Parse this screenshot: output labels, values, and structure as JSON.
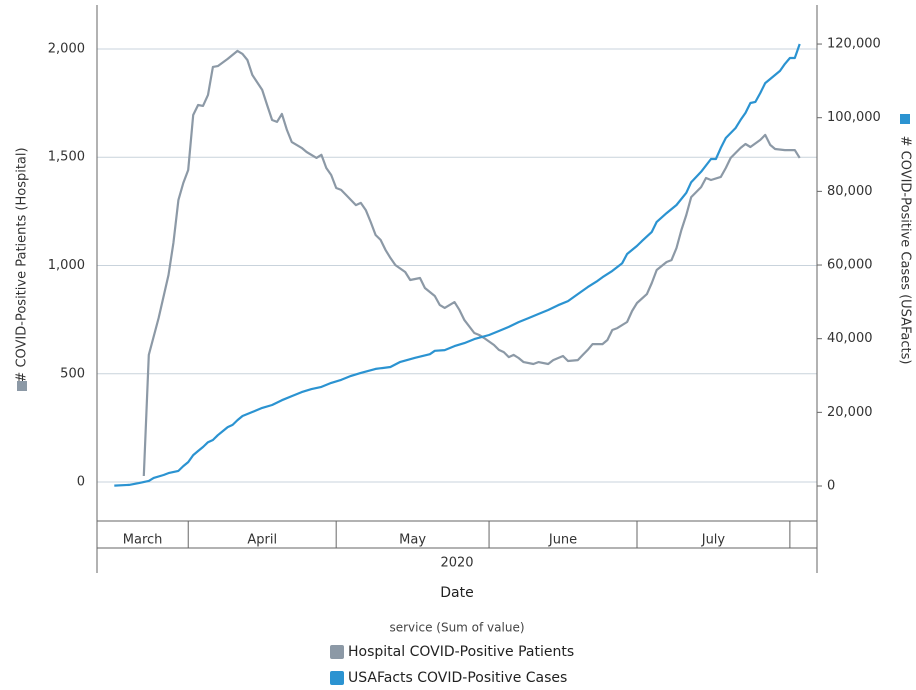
{
  "chart_data": {
    "type": "line",
    "x_label": "Date",
    "x_group_label": "2020",
    "ylabel": "# COVID-Positive Patients (Hospital)",
    "y2label": "# COVID-Positive Cases (USAFacts)",
    "legend_title": "service (Sum of value)",
    "xlim": [
      73.5,
      219.5
    ],
    "x_bands": [
      {
        "label": "March",
        "start": 61,
        "end": 92
      },
      {
        "label": "April",
        "start": 92,
        "end": 122
      },
      {
        "label": "May",
        "start": 122,
        "end": 153
      },
      {
        "label": "June",
        "start": 153,
        "end": 183
      },
      {
        "label": "July",
        "start": 183,
        "end": 214
      },
      {
        "label": null,
        "start": 214,
        "end": 245
      }
    ],
    "ylim": [
      -180,
      2203
    ],
    "yticks": [
      0,
      500,
      {
        "value": 1000,
        "label": "1,000"
      },
      {
        "value": 1500,
        "label": "1,500"
      },
      {
        "value": 2000,
        "label": "2,000"
      }
    ],
    "y2lim": [
      -9500,
      130600
    ],
    "y2ticks": [
      0,
      {
        "value": 20000,
        "label": "20,000"
      },
      {
        "value": 40000,
        "label": "40,000"
      },
      {
        "value": 60000,
        "label": "60,000"
      },
      {
        "value": 80000,
        "label": "80,000"
      },
      {
        "value": 100000,
        "label": "100,000"
      },
      {
        "value": 120000,
        "label": "120,000"
      }
    ],
    "grid": true,
    "series": [
      {
        "name": "Hospital COVID-Positive Patients",
        "color": "#8c99a6",
        "axis": "y",
        "x": [
          83,
          84,
          86,
          88,
          89,
          90,
          91,
          92,
          93,
          94,
          95,
          96,
          97,
          98,
          100,
          102,
          103,
          104,
          105,
          107,
          108,
          109,
          110,
          111,
          112,
          113,
          115,
          116,
          118,
          119,
          120,
          121,
          122,
          123,
          124,
          126,
          127,
          128,
          129,
          130,
          131,
          132,
          133,
          134,
          136,
          137,
          139,
          140,
          142,
          143,
          144,
          146,
          147,
          148,
          150,
          151,
          152,
          154,
          155,
          156,
          157,
          158,
          159,
          160,
          162,
          163,
          165,
          166,
          168,
          169,
          171,
          172,
          173,
          174,
          176,
          177,
          178,
          179,
          181,
          182,
          183,
          185,
          186,
          187,
          189,
          190,
          191,
          192,
          193,
          194,
          196,
          197,
          198,
          200,
          201,
          202,
          204,
          205,
          206,
          208,
          209,
          210,
          211,
          213,
          214,
          215,
          216
        ],
        "values": [
          28,
          587,
          757,
          956,
          1104,
          1302,
          1381,
          1441,
          1695,
          1741,
          1737,
          1788,
          1917,
          1921,
          1954,
          1991,
          1977,
          1949,
          1880,
          1811,
          1741,
          1672,
          1663,
          1700,
          1626,
          1570,
          1543,
          1524,
          1497,
          1511,
          1450,
          1418,
          1358,
          1349,
          1326,
          1279,
          1289,
          1256,
          1201,
          1141,
          1118,
          1072,
          1035,
          1002,
          970,
          933,
          942,
          896,
          859,
          818,
          804,
          831,
          794,
          748,
          688,
          679,
          665,
          633,
          610,
          600,
          577,
          587,
          573,
          554,
          545,
          554,
          545,
          563,
          582,
          559,
          563,
          587,
          610,
          637,
          637,
          656,
          702,
          711,
          739,
          790,
          827,
          868,
          919,
          979,
          1016,
          1025,
          1081,
          1164,
          1233,
          1316,
          1362,
          1404,
          1395,
          1409,
          1450,
          1497,
          1543,
          1561,
          1547,
          1580,
          1603,
          1557,
          1538,
          1533,
          1533,
          1533,
          1497
        ]
      },
      {
        "name": "USAFacts COVID-Positive Cases",
        "color": "#2b93d1",
        "axis": "y2",
        "x": [
          77,
          80,
          82,
          84,
          85,
          87,
          88,
          90,
          91,
          92,
          93,
          94,
          95,
          96,
          97,
          98,
          99,
          100,
          101,
          102,
          103,
          105,
          107,
          109,
          111,
          113,
          115,
          117,
          119,
          121,
          123,
          125,
          127,
          130,
          133,
          135,
          138,
          141,
          142,
          144,
          146,
          148,
          150,
          153,
          155,
          157,
          159,
          161,
          163,
          165,
          167,
          169,
          171,
          173,
          175,
          176,
          178,
          180,
          181,
          183,
          184,
          186,
          187,
          189,
          191,
          193,
          194,
          196,
          198,
          199,
          200,
          201,
          203,
          204,
          205,
          206,
          207,
          208,
          209,
          210,
          212,
          213,
          214,
          215,
          216
        ],
        "values": [
          100,
          300,
          800,
          1400,
          2200,
          3000,
          3500,
          4100,
          5400,
          6500,
          8400,
          9500,
          10600,
          11900,
          12500,
          13800,
          14900,
          16000,
          16600,
          17900,
          19000,
          20100,
          21200,
          22000,
          23300,
          24400,
          25500,
          26300,
          26900,
          28000,
          28800,
          29900,
          30700,
          31800,
          32300,
          33700,
          34800,
          35800,
          36700,
          36900,
          38000,
          38800,
          39900,
          41000,
          42100,
          43200,
          44500,
          45600,
          46700,
          47800,
          49100,
          50200,
          52100,
          54000,
          55700,
          56700,
          58400,
          60500,
          63000,
          65200,
          66500,
          69000,
          71700,
          74100,
          76300,
          79600,
          82500,
          85300,
          88800,
          88800,
          91800,
          94500,
          97200,
          99400,
          101300,
          104000,
          104300,
          106700,
          109400,
          110500,
          112700,
          114600,
          116200,
          116200,
          120000
        ]
      }
    ]
  }
}
